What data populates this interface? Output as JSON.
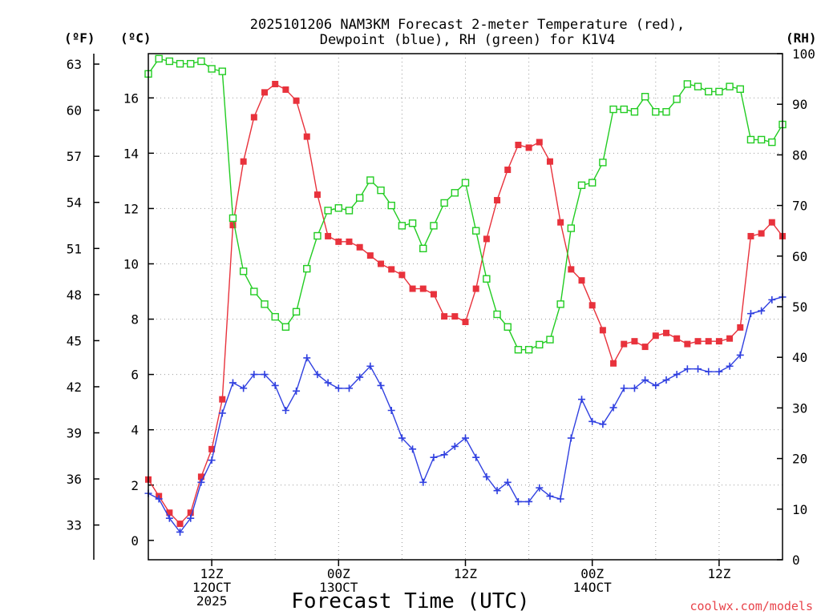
{
  "chart_data": {
    "type": "line",
    "title": [
      "2025101206 NAM3KM Forecast 2-meter Temperature (red),",
      "Dewpoint (blue), RH (green) for K1V4"
    ],
    "xlabel": "Forecast Time (UTC)",
    "credit": "coolwx.com/models",
    "units": {
      "f": "(ºF)",
      "c": "(ºC)",
      "rh": "(RH)"
    },
    "colors": {
      "temp": "#e8323c",
      "dew": "#3040e0",
      "rh": "#22cc22"
    },
    "xlim": [
      6,
      66
    ],
    "ylim_c": [
      -0.7,
      17.6
    ],
    "ylim_rh": [
      0,
      100
    ],
    "c_ticks": [
      0,
      2,
      4,
      6,
      8,
      10,
      12,
      14,
      16
    ],
    "f_ticks": [
      33,
      36,
      39,
      42,
      45,
      48,
      51,
      54,
      57,
      60,
      63
    ],
    "rh_ticks": [
      0,
      10,
      20,
      30,
      40,
      50,
      60,
      70,
      80,
      90,
      100
    ],
    "x_ticks": [
      {
        "hour": 12,
        "lines": [
          "12Z",
          "12OCT",
          "2025"
        ]
      },
      {
        "hour": 24,
        "lines": [
          "00Z",
          "13OCT"
        ]
      },
      {
        "hour": 36,
        "lines": [
          "12Z"
        ]
      },
      {
        "hour": 48,
        "lines": [
          "00Z",
          "14OCT"
        ]
      },
      {
        "hour": 60,
        "lines": [
          "12Z"
        ]
      }
    ],
    "x_grid": [
      12,
      18,
      24,
      30,
      36,
      42,
      48,
      54,
      60
    ],
    "y_grid_c": [
      2,
      4,
      6,
      8,
      10,
      12,
      14,
      16
    ],
    "hours": [
      6,
      7,
      8,
      9,
      10,
      11,
      12,
      13,
      14,
      15,
      16,
      17,
      18,
      19,
      20,
      21,
      22,
      23,
      24,
      25,
      26,
      27,
      28,
      29,
      30,
      31,
      32,
      33,
      34,
      35,
      36,
      37,
      38,
      39,
      40,
      41,
      42,
      43,
      44,
      45,
      46,
      47,
      48,
      49,
      50,
      51,
      52,
      53,
      54,
      55,
      56,
      57,
      58,
      59,
      60,
      61,
      62,
      63,
      64,
      65,
      66
    ],
    "series": [
      {
        "name": "Temperature (°C)",
        "key": "temp",
        "axis": "c",
        "marker": "square",
        "values": [
          2.2,
          1.6,
          1.0,
          0.6,
          1.0,
          2.3,
          3.3,
          5.1,
          11.4,
          13.7,
          15.3,
          16.2,
          16.5,
          16.3,
          15.9,
          14.6,
          12.5,
          11.0,
          10.8,
          10.8,
          10.6,
          10.3,
          10.0,
          9.8,
          9.6,
          9.1,
          9.1,
          8.9,
          8.1,
          8.1,
          7.9,
          9.1,
          10.9,
          12.3,
          13.4,
          14.3,
          14.2,
          14.4,
          13.7,
          11.5,
          9.8,
          9.4,
          8.5,
          7.6,
          6.4,
          7.1,
          7.2,
          7.0,
          7.4,
          7.5,
          7.3,
          7.1,
          7.2,
          7.2,
          7.2,
          7.3,
          7.7,
          11.0,
          11.1,
          11.5,
          11.0
        ]
      },
      {
        "name": "Dewpoint (°C)",
        "key": "dew",
        "axis": "c",
        "marker": "plus",
        "values": [
          1.7,
          1.5,
          0.8,
          0.3,
          0.8,
          2.1,
          2.9,
          4.6,
          5.7,
          5.5,
          6.0,
          6.0,
          5.6,
          4.7,
          5.4,
          6.6,
          6.0,
          5.7,
          5.5,
          5.5,
          5.9,
          6.3,
          5.6,
          4.7,
          3.7,
          3.3,
          2.1,
          3.0,
          3.1,
          3.4,
          3.7,
          3.0,
          2.3,
          1.8,
          2.1,
          1.4,
          1.4,
          1.9,
          1.6,
          1.5,
          3.7,
          5.1,
          4.3,
          4.2,
          4.8,
          5.5,
          5.5,
          5.8,
          5.6,
          5.8,
          6.0,
          6.2,
          6.2,
          6.1,
          6.1,
          6.3,
          6.7,
          8.2,
          8.3,
          8.7,
          8.8
        ]
      },
      {
        "name": "RH (%)",
        "key": "rh",
        "axis": "rh",
        "marker": "open-square",
        "values": [
          96,
          99,
          98.5,
          98,
          98,
          98.5,
          97,
          96.5,
          67.5,
          57,
          53,
          50.5,
          48,
          46,
          49,
          57.5,
          64,
          69,
          69.5,
          69,
          71.5,
          75,
          73,
          70,
          66,
          66.5,
          61.5,
          66,
          70.5,
          72.5,
          74.5,
          65,
          55.5,
          48.5,
          46,
          41.5,
          41.5,
          42.5,
          43.5,
          50.5,
          65.5,
          74,
          74.5,
          78.5,
          89,
          89,
          88.5,
          91.5,
          88.5,
          88.5,
          91,
          94,
          93.5,
          92.5,
          92.5,
          93.5,
          93,
          83,
          83,
          82.5,
          86
        ]
      }
    ]
  }
}
